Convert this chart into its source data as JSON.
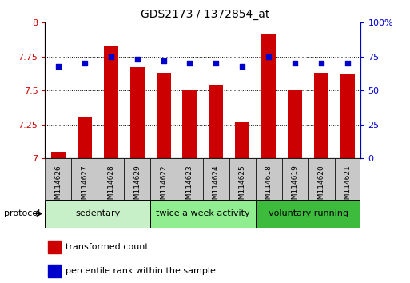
{
  "title": "GDS2173 / 1372854_at",
  "samples": [
    "GSM114626",
    "GSM114627",
    "GSM114628",
    "GSM114629",
    "GSM114622",
    "GSM114623",
    "GSM114624",
    "GSM114625",
    "GSM114618",
    "GSM114619",
    "GSM114620",
    "GSM114621"
  ],
  "bar_values": [
    7.05,
    7.31,
    7.83,
    7.67,
    7.63,
    7.5,
    7.54,
    7.27,
    7.92,
    7.5,
    7.63,
    7.62
  ],
  "dot_values": [
    68,
    70,
    75,
    73,
    72,
    70,
    70,
    68,
    75,
    70,
    70,
    70
  ],
  "groups": [
    {
      "label": "sedentary",
      "start": 0,
      "end": 4,
      "color": "#c8f0c8"
    },
    {
      "label": "twice a week activity",
      "start": 4,
      "end": 8,
      "color": "#90ee90"
    },
    {
      "label": "voluntary running",
      "start": 8,
      "end": 12,
      "color": "#3dbb3d"
    }
  ],
  "ylim_left": [
    7.0,
    8.0
  ],
  "ylim_right": [
    0,
    100
  ],
  "yticks_left": [
    7.0,
    7.25,
    7.5,
    7.75,
    8.0
  ],
  "yticks_right": [
    0,
    25,
    50,
    75,
    100
  ],
  "ytick_labels_left": [
    "7",
    "7.25",
    "7.5",
    "7.75",
    "8"
  ],
  "ytick_labels_right": [
    "0",
    "25",
    "50",
    "75",
    "100%"
  ],
  "bar_color": "#cc0000",
  "dot_color": "#0000cc",
  "bar_width": 0.55,
  "protocol_label": "protocol",
  "legend_bar_label": "transformed count",
  "legend_dot_label": "percentile rank within the sample",
  "tick_label_color_left": "#cc0000",
  "tick_label_color_right": "#0000cc",
  "sample_box_color": "#c8c8c8",
  "fig_width": 5.13,
  "fig_height": 3.54
}
